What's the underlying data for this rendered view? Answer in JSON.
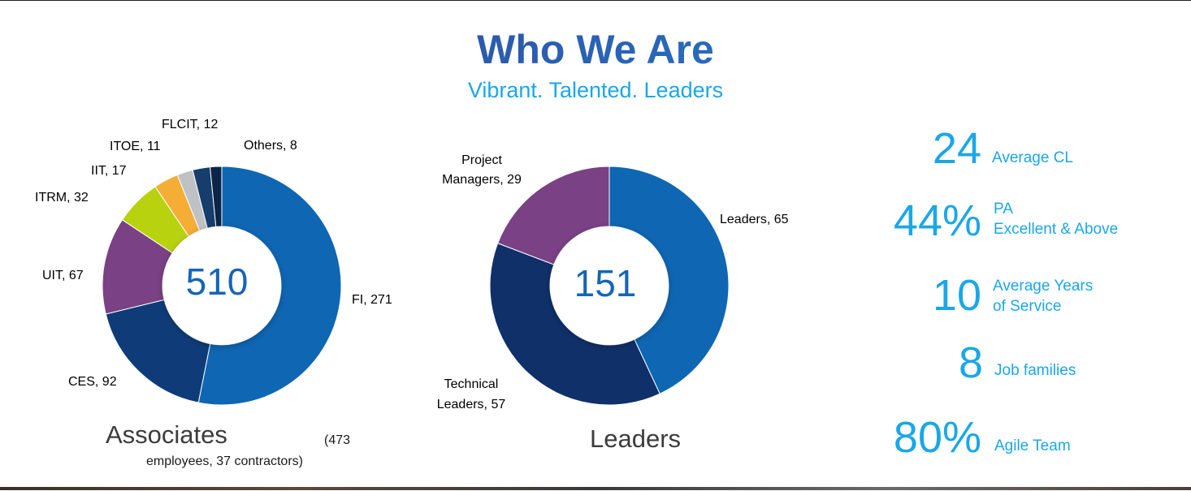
{
  "header": {
    "title": "Who We Are",
    "subtitle": "Vibrant. Talented. Leaders"
  },
  "chart_data": [
    {
      "type": "pie",
      "donut": true,
      "center_label": "510",
      "caption": "Associates",
      "note_line1": "(473",
      "note_line2": "employees, 37 contractors)",
      "slices": [
        {
          "label": "FI, 271",
          "value": 271,
          "color": "#0f66b3"
        },
        {
          "label": "CES, 92",
          "value": 92,
          "color": "#0f3c78"
        },
        {
          "label": "UIT, 67",
          "value": 67,
          "color": "#7a4185"
        },
        {
          "label": "ITRM, 32",
          "value": 32,
          "color": "#b8d20f"
        },
        {
          "label": "IIT, 17",
          "value": 17,
          "color": "#f4ad35"
        },
        {
          "label": "ITOE, 11",
          "value": 11,
          "color": "#bfc2c4"
        },
        {
          "label": "FLCIT, 12",
          "value": 12,
          "color": "#173d6d"
        },
        {
          "label": "Others, 8",
          "value": 8,
          "color": "#0b2447"
        }
      ]
    },
    {
      "type": "pie",
      "donut": true,
      "center_label": "151",
      "caption": "Leaders",
      "slices": [
        {
          "label": "Leaders, 65",
          "value": 65,
          "color": "#0f66b3"
        },
        {
          "label_lines": [
            "Technical",
            "Leaders, 57"
          ],
          "value": 57,
          "color": "#0f3069"
        },
        {
          "label_lines": [
            "Project",
            "Managers, 29"
          ],
          "value": 29,
          "color": "#7a4185"
        }
      ]
    }
  ],
  "stats": [
    {
      "value": "24",
      "label": "Average CL"
    },
    {
      "value": "44%",
      "label": "PA\nExcellent & Above"
    },
    {
      "value": "10",
      "label": "Average Years\nof Service"
    },
    {
      "value": "8",
      "label": "Job families"
    },
    {
      "value": "80%",
      "label": "Agile Team"
    }
  ]
}
